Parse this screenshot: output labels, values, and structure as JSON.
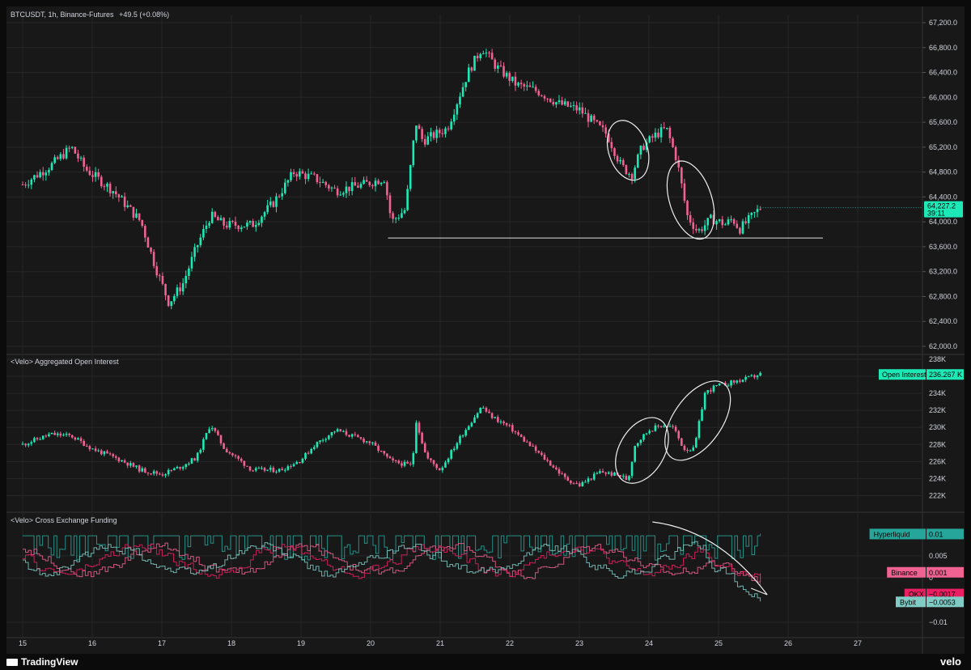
{
  "header": {
    "symbol_line": "BTCUSDT, 1h, Binance-Futures",
    "change": "+49.5 (+0.08%)"
  },
  "panes": {
    "oi_title": "<Velo> Aggregated Open Interest",
    "funding_title": "<Velo> Cross Exchange Funding"
  },
  "price_tag": {
    "value": "64,227.2",
    "countdown": "39:11"
  },
  "oi_tag": {
    "label": "Open Interest",
    "value": "236.267 K"
  },
  "funding_tags": [
    {
      "label": "Hyperliquid",
      "value": "0.01",
      "color": "#26a69a"
    },
    {
      "label": "Binance",
      "value": "0.001",
      "color": "#f06292"
    },
    {
      "label": "OKX",
      "value": "−0.0017",
      "color": "#e91e63"
    },
    {
      "label": "Bybit",
      "value": "−0.0053",
      "color": "#80cbc4"
    }
  ],
  "footer": {
    "brand": "TradingView",
    "velo": "velo"
  },
  "colors": {
    "up": "#26a69a",
    "down": "#e0245e",
    "up_bright": "#1de9b6",
    "down_bright": "#f06292",
    "background": "#181818",
    "grid": "#262626"
  },
  "chart_data": [
    {
      "type": "candlestick",
      "title": "BTCUSDT, 1h, Binance-Futures",
      "x_tick_labels": [
        "15",
        "16",
        "17",
        "18",
        "19",
        "20",
        "21",
        "22",
        "23",
        "24",
        "25",
        "26",
        "27"
      ],
      "y_tick_labels": [
        "67,200.0",
        "66,800.0",
        "66,400.0",
        "66,000.0",
        "65,600.0",
        "65,200.0",
        "64,800.0",
        "64,400.0",
        "64,000.0",
        "63,600.0",
        "63,200.0",
        "62,800.0",
        "62,400.0",
        "62,000.0"
      ],
      "ylim": [
        62000,
        67200
      ],
      "last_value": 64227.2,
      "horizontal_line": 63740,
      "path_days": [
        15.0,
        15.4,
        15.7,
        15.9,
        16.3,
        16.7,
        16.9,
        17.1,
        17.3,
        17.5,
        17.7,
        17.9,
        18.3,
        18.6,
        18.9,
        19.2,
        19.5,
        19.9,
        20.2,
        20.3,
        20.5,
        20.65,
        20.75,
        21.1,
        21.4,
        21.6,
        21.8,
        22.1,
        22.4,
        22.7,
        23.0,
        23.2,
        23.4,
        23.6,
        23.75,
        23.9,
        24.1,
        24.25,
        24.4,
        24.55,
        24.7,
        24.9,
        25.1,
        25.2,
        25.3,
        25.45,
        25.6
      ],
      "path_values": [
        64600,
        64900,
        65200,
        64850,
        64500,
        64000,
        63300,
        62700,
        63000,
        63600,
        64100,
        63950,
        63950,
        64300,
        64800,
        64700,
        64500,
        64600,
        64700,
        64000,
        64200,
        65600,
        65300,
        65500,
        66400,
        66800,
        66500,
        66200,
        66100,
        65900,
        65800,
        65600,
        65400,
        64900,
        64750,
        65200,
        65400,
        65500,
        65000,
        64100,
        63840,
        64050,
        63960,
        64050,
        63880,
        64050,
        64227
      ]
    },
    {
      "type": "candlestick",
      "title": "<Velo> Aggregated Open Interest",
      "y_tick_labels": [
        "238K",
        "236K",
        "234K",
        "232K",
        "230K",
        "228K",
        "226K",
        "224K",
        "222K"
      ],
      "ylim": [
        221000,
        238000
      ],
      "last_value": 236267,
      "path_days": [
        15.0,
        15.4,
        15.7,
        16.0,
        16.4,
        16.7,
        17.0,
        17.3,
        17.5,
        17.7,
        17.9,
        18.3,
        18.7,
        19.0,
        19.2,
        19.5,
        19.8,
        20.0,
        20.3,
        20.6,
        20.65,
        20.8,
        21.0,
        21.3,
        21.6,
        21.7,
        22.0,
        22.3,
        22.6,
        22.8,
        23.0,
        23.3,
        23.6,
        23.7,
        23.8,
        24.0,
        24.2,
        24.35,
        24.5,
        24.65,
        24.8,
        24.95,
        25.2,
        25.4,
        25.6
      ],
      "path_values": [
        228000,
        229200,
        229000,
        227500,
        226200,
        225000,
        224500,
        225500,
        226500,
        230400,
        227500,
        225000,
        225000,
        226200,
        228000,
        229700,
        228800,
        228200,
        226000,
        225500,
        231000,
        226500,
        225000,
        229000,
        232500,
        231500,
        230000,
        227800,
        225600,
        224000,
        223200,
        224800,
        224300,
        223800,
        228000,
        229700,
        230300,
        230000,
        227500,
        227400,
        234000,
        234800,
        235300,
        235700,
        236267
      ]
    },
    {
      "type": "line",
      "title": "<Velo> Cross Exchange Funding",
      "y_tick_labels": [
        "0.005",
        "0",
        "−0.01"
      ],
      "ylim": [
        -0.012,
        0.013
      ],
      "series": [
        {
          "name": "Hyperliquid",
          "last_value": 0.01,
          "color": "#26a69a"
        },
        {
          "name": "Binance",
          "last_value": 0.001,
          "color": "#f06292"
        },
        {
          "name": "OKX",
          "last_value": -0.0017,
          "color": "#e91e63"
        },
        {
          "name": "Bybit",
          "last_value": -0.0053,
          "color": "#80cbc4"
        }
      ]
    }
  ]
}
